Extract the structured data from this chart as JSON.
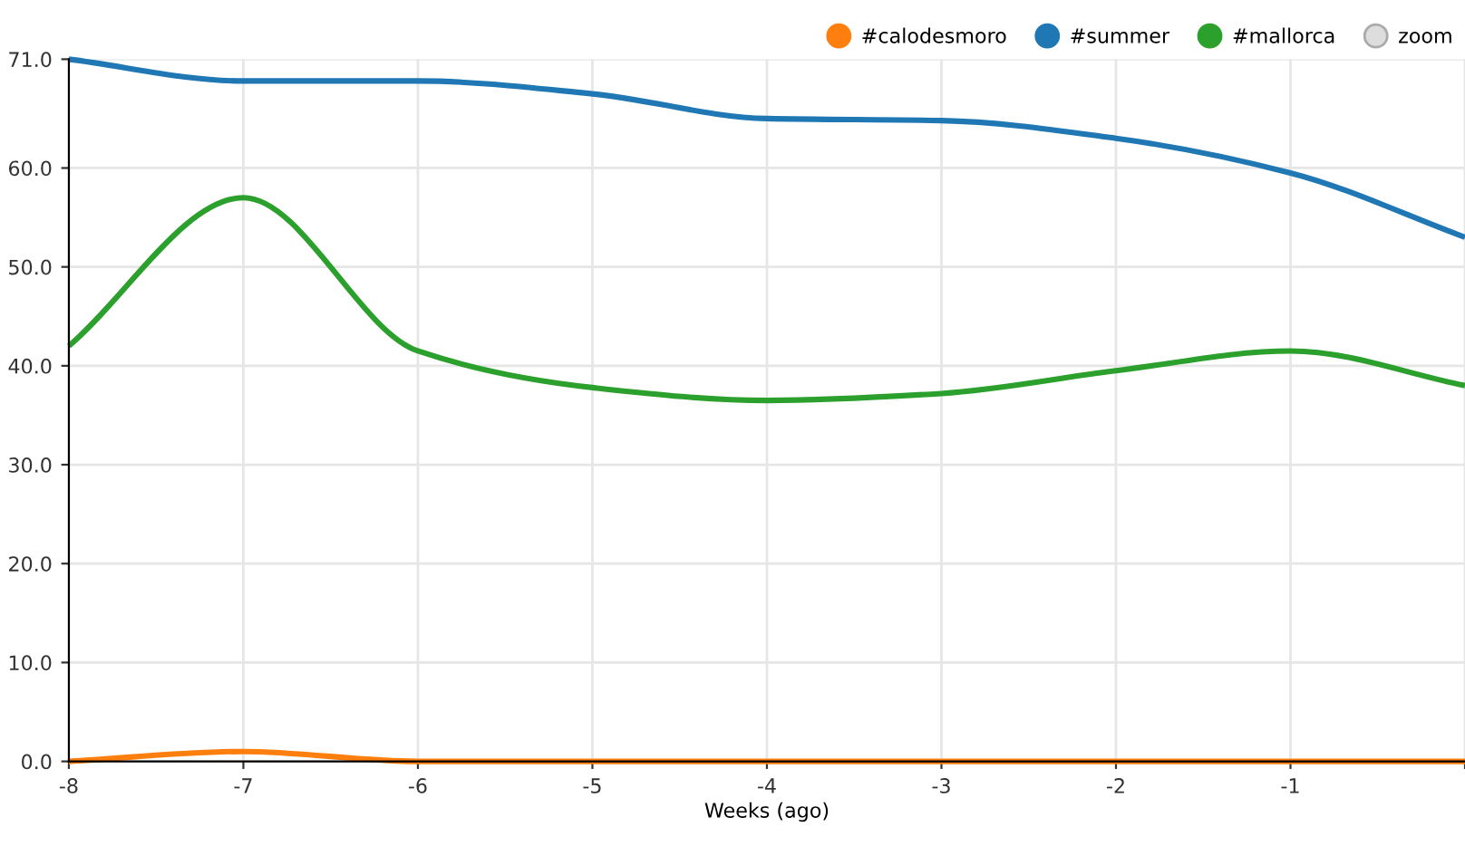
{
  "chart_data": {
    "type": "line",
    "xlabel": "Weeks (ago)",
    "x": [
      -8,
      -7,
      -6,
      -5,
      -4,
      -3,
      -2,
      -1,
      0
    ],
    "series": [
      {
        "name": "#calodesmoro",
        "color": "#ff7f0e",
        "values": [
          0,
          1,
          0,
          0,
          0,
          0,
          0,
          0,
          0
        ]
      },
      {
        "name": "#summer",
        "color": "#1f77b4",
        "values": [
          71,
          68.8,
          68.8,
          67.5,
          65,
          64.8,
          63,
          59.5,
          53
        ]
      },
      {
        "name": "#mallorca",
        "color": "#2ca02c",
        "values": [
          42,
          57,
          41.5,
          37.8,
          36.5,
          37.2,
          39.5,
          41.5,
          38
        ]
      }
    ],
    "annotations": [
      "zoom"
    ],
    "xlim": [
      -8,
      0
    ],
    "xticks": [
      -8,
      -7,
      -6,
      -5,
      -4,
      -3,
      -2,
      -1,
      {
        "value": 0,
        "label": null
      }
    ],
    "ylim": [
      0,
      71
    ],
    "yticks": [
      {
        "value": 0,
        "label": "0.0"
      },
      {
        "value": 10,
        "label": "10.0"
      },
      {
        "value": 20,
        "label": "20.0"
      },
      {
        "value": 30,
        "label": "30.0"
      },
      {
        "value": 40,
        "label": "40.0"
      },
      {
        "value": 50,
        "label": "50.0"
      },
      {
        "value": 60,
        "label": "60.0"
      },
      {
        "value": 71,
        "label": "71.0"
      }
    ],
    "grid": true,
    "legend": "top right",
    "marker": "none",
    "line_style": "solid"
  }
}
